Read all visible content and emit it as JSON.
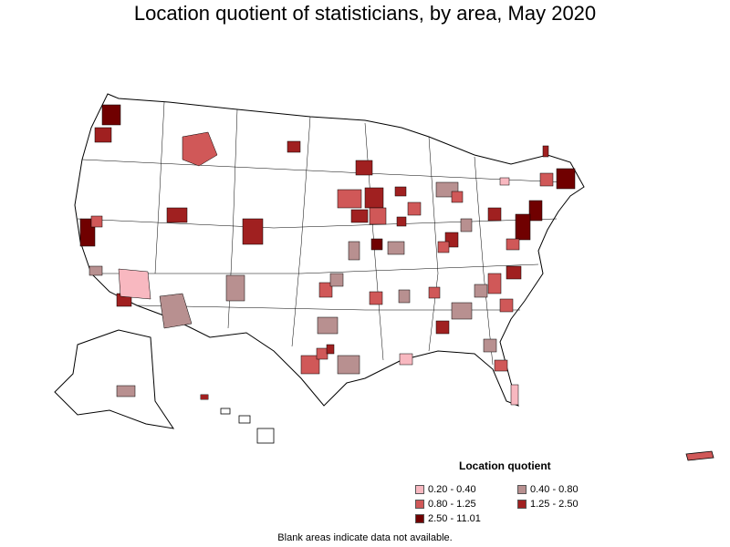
{
  "title": "Location quotient of statisticians, by area, May 2020",
  "legend": {
    "title": "Location quotient",
    "items": [
      {
        "label": "0.20 - 0.40",
        "color": "#f8b8c0"
      },
      {
        "label": "0.40 - 0.80",
        "color": "#b89090"
      },
      {
        "label": "0.80 - 1.25",
        "color": "#d05858"
      },
      {
        "label": "1.25 - 2.50",
        "color": "#a02020"
      },
      {
        "label": "2.50 - 11.01",
        "color": "#700000"
      }
    ]
  },
  "note": "Blank areas indicate data not available."
}
